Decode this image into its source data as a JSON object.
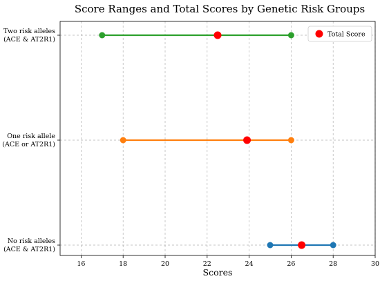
{
  "chart_data": {
    "type": "dumbbell",
    "title": "Score Ranges and Total Scores by Genetic Risk Groups",
    "xlabel": "Scores",
    "ylabel": "",
    "xlim": [
      15,
      30
    ],
    "xticks": [
      16,
      18,
      20,
      22,
      24,
      26,
      28,
      30
    ],
    "grid": true,
    "legend": {
      "position": "top-right",
      "entries": [
        "Total Score"
      ]
    },
    "categories": [
      {
        "lines": [
          "No risk alleles",
          "(ACE & AT2R1)"
        ],
        "min": 25,
        "max": 28,
        "total": 26.5,
        "color": "#1f77b4"
      },
      {
        "lines": [
          "One risk allele",
          "(ACE or AT2R1)"
        ],
        "min": 18,
        "max": 26,
        "total": 23.9,
        "color": "#ff7f0e"
      },
      {
        "lines": [
          "Two risk alleles",
          "(ACE & AT2R1)"
        ],
        "min": 17,
        "max": 26,
        "total": 22.5,
        "color": "#2ca02c"
      }
    ],
    "total_color": "#ff0000"
  }
}
